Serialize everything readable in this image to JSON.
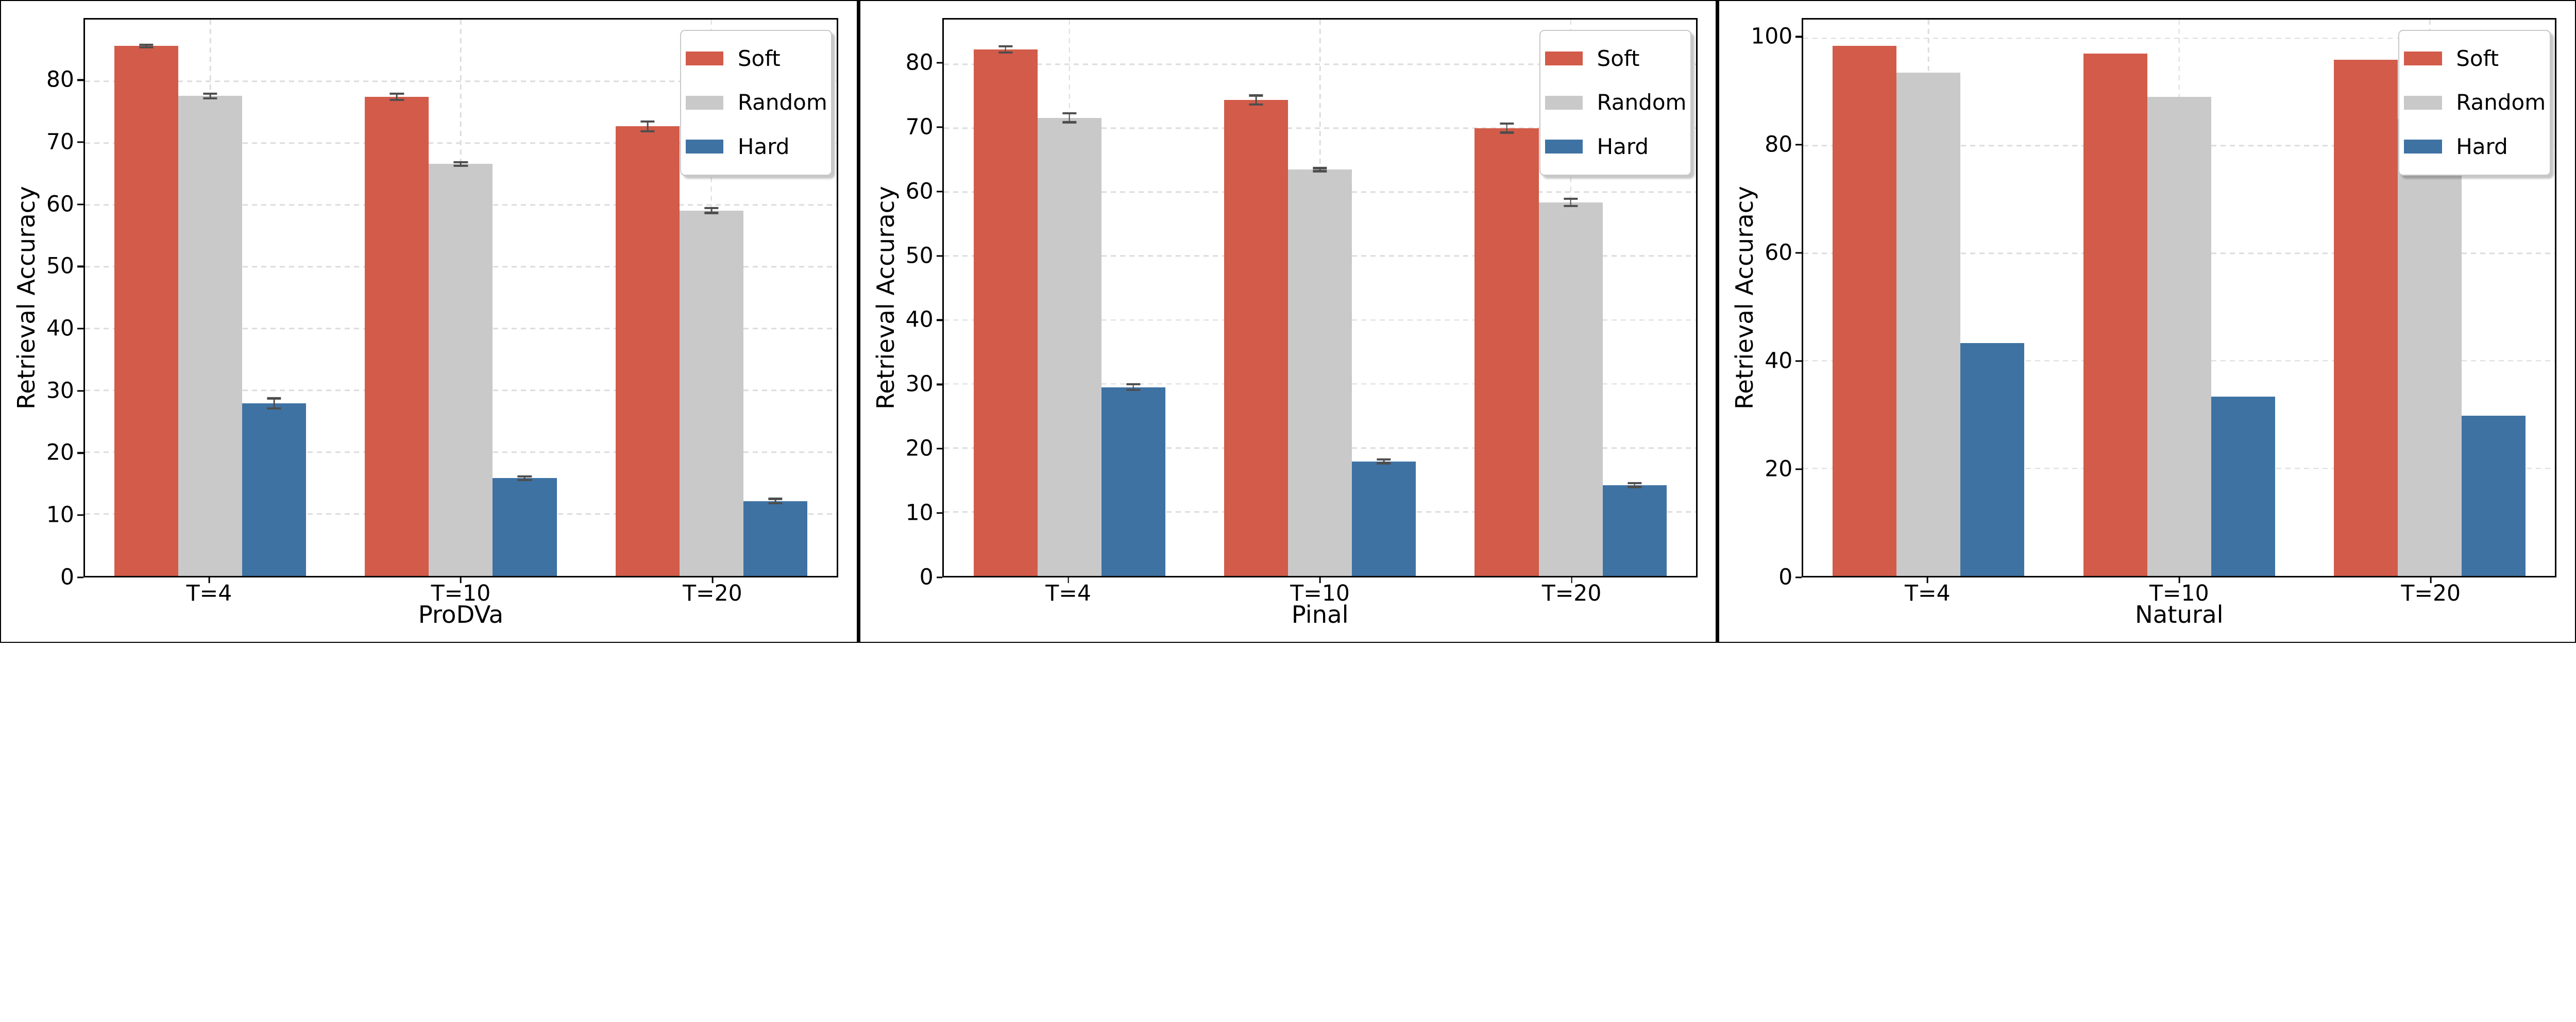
{
  "figure": {
    "background_color": "#ffffff",
    "frame_color": "#000000",
    "grid_color": "#dcdcdc",
    "error_bar_color": "#4d4d4d",
    "legend": {
      "position": "upper right",
      "labels": [
        "Soft",
        "Random",
        "Hard"
      ]
    }
  },
  "chart_data": [
    {
      "type": "bar",
      "title": "",
      "xlabel": "ProDVa",
      "ylabel": "Retrieval Accuracy",
      "categories": [
        "T=4",
        "T=10",
        "T=20"
      ],
      "ylim": [
        0,
        90
      ],
      "yticks": [
        0,
        10,
        20,
        30,
        40,
        50,
        60,
        70,
        80
      ],
      "grid": true,
      "legend_position": "upper right",
      "series": [
        {
          "name": "Soft",
          "color": "#d25b49",
          "values": [
            85.7,
            77.5,
            72.7
          ],
          "errors": [
            0.2,
            0.5,
            0.8
          ]
        },
        {
          "name": "Random",
          "color": "#c9c9c9",
          "values": [
            77.6,
            66.6,
            59.1
          ],
          "errors": [
            0.35,
            0.3,
            0.4
          ]
        },
        {
          "name": "Hard",
          "color": "#3e72a3",
          "values": [
            27.9,
            15.8,
            12.1
          ],
          "errors": [
            0.8,
            0.3,
            0.35
          ]
        }
      ]
    },
    {
      "type": "bar",
      "title": "",
      "xlabel": "Pinal",
      "ylabel": "Retrieval Accuracy",
      "categories": [
        "T=4",
        "T=10",
        "T=20"
      ],
      "ylim": [
        0,
        87
      ],
      "yticks": [
        0,
        10,
        20,
        30,
        40,
        50,
        60,
        70,
        80
      ],
      "grid": true,
      "legend_position": "upper right",
      "series": [
        {
          "name": "Soft",
          "color": "#d25b49",
          "values": [
            82.3,
            74.4,
            70.0
          ],
          "errors": [
            0.5,
            0.7,
            0.7
          ]
        },
        {
          "name": "Random",
          "color": "#c9c9c9",
          "values": [
            71.6,
            63.5,
            58.4
          ],
          "errors": [
            0.7,
            0.25,
            0.55
          ]
        },
        {
          "name": "Hard",
          "color": "#3e72a3",
          "values": [
            29.5,
            17.9,
            14.2
          ],
          "errors": [
            0.45,
            0.3,
            0.3
          ]
        }
      ]
    },
    {
      "type": "bar",
      "title": "",
      "xlabel": "Natural",
      "ylabel": "Retrieval Accuracy",
      "categories": [
        "T=4",
        "T=10",
        "T=20"
      ],
      "ylim": [
        0,
        103.5
      ],
      "yticks": [
        0,
        20,
        40,
        60,
        80,
        100
      ],
      "grid": true,
      "legend_position": "upper right",
      "series": [
        {
          "name": "Soft",
          "color": "#d25b49",
          "values": [
            98.6,
            97.1,
            96.0
          ],
          "errors": null
        },
        {
          "name": "Random",
          "color": "#c9c9c9",
          "values": [
            93.6,
            89.1,
            85.0
          ],
          "errors": null
        },
        {
          "name": "Hard",
          "color": "#3e72a3",
          "values": [
            43.3,
            33.3,
            29.8
          ],
          "errors": null
        }
      ]
    }
  ]
}
